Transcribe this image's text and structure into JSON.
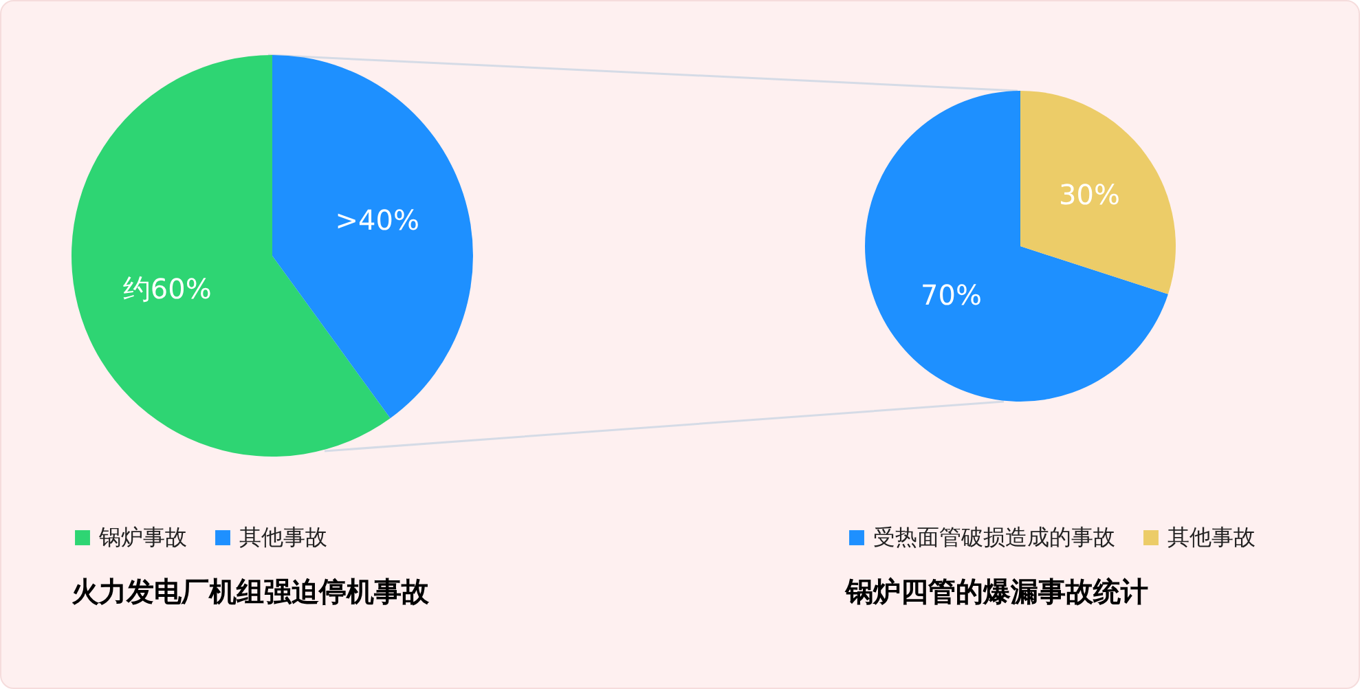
{
  "chart_data": [
    {
      "type": "pie",
      "title": "火力发电厂机组强迫停机事故",
      "categories": [
        "锅炉事故",
        "其他事故"
      ],
      "values": [
        60,
        40
      ],
      "colors": [
        "#2ed573",
        "#1e90ff"
      ],
      "value_labels": [
        "约60%",
        ">40%"
      ],
      "legend": "bottom"
    },
    {
      "type": "pie",
      "title": "锅炉四管的爆漏事故统计",
      "categories": [
        "受热面管破损造成的事故",
        "其他事故"
      ],
      "values": [
        70,
        30
      ],
      "colors": [
        "#1e90ff",
        "#eccc68"
      ],
      "value_labels": [
        "70%",
        "30%"
      ],
      "legend": "bottom"
    }
  ]
}
